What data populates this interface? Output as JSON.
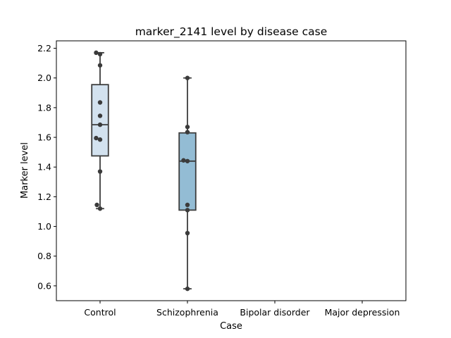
{
  "chart_data": {
    "type": "box",
    "title": "marker_2141 level by disease case",
    "xlabel": "Case",
    "ylabel": "Marker level",
    "categories": [
      "Control",
      "Schizophrenia",
      "Bipolar disorder",
      "Major depression"
    ],
    "ylim": [
      0.5,
      2.25
    ],
    "yticks": [
      0.6,
      0.8,
      1.0,
      1.2,
      1.4,
      1.6,
      1.8,
      2.0,
      2.2
    ],
    "ytick_labels": [
      "0.6",
      "0.8",
      "1.0",
      "1.2",
      "1.4",
      "1.6",
      "1.8",
      "2.0",
      "2.2"
    ],
    "grid": false,
    "boxes": [
      {
        "category": "Control",
        "whisker_low": 1.12,
        "q1": 1.475,
        "median": 1.685,
        "q3": 1.955,
        "whisker_high": 2.17
      },
      {
        "category": "Schizophrenia",
        "whisker_low": 0.58,
        "q1": 1.11,
        "median": 1.44,
        "q3": 1.63,
        "whisker_high": 2.0
      }
    ],
    "points": [
      {
        "category": "Control",
        "values": [
          2.17,
          2.16,
          2.085,
          1.835,
          1.745,
          1.685,
          1.595,
          1.585,
          1.37,
          1.145,
          1.12
        ],
        "offsets": [
          -0.15,
          0,
          0,
          0,
          0,
          0,
          -0.15,
          0,
          0,
          -0.12,
          0
        ]
      },
      {
        "category": "Schizophrenia",
        "values": [
          2.0,
          1.67,
          1.635,
          1.445,
          1.44,
          1.145,
          1.11,
          0.955,
          0.58
        ],
        "offsets": [
          0,
          0,
          0,
          -0.15,
          0,
          0,
          0,
          0,
          0
        ]
      }
    ],
    "colors": {
      "Control": "#d3e2ef",
      "Schizophrenia": "#93bcd4",
      "edge": "#3d3d3d",
      "point": "#3b3b3b"
    }
  }
}
